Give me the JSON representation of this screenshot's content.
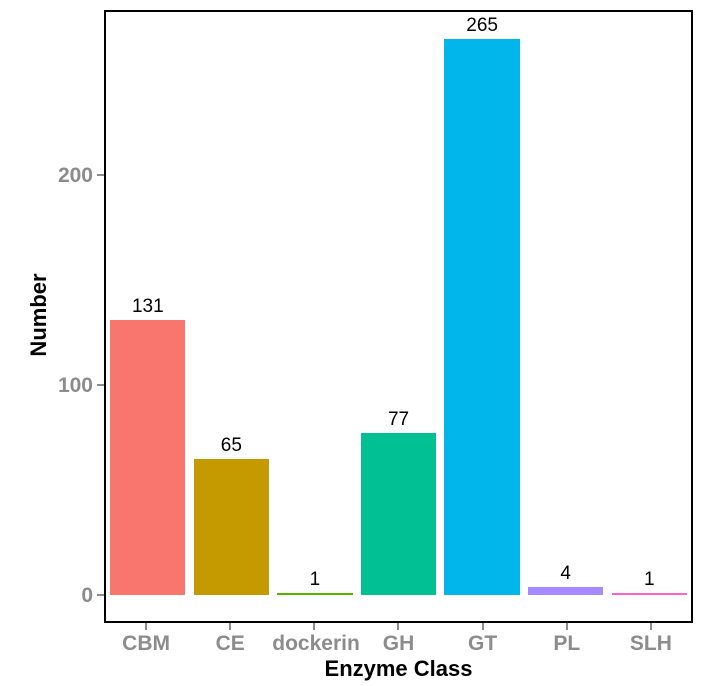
{
  "chart_data": {
    "type": "bar",
    "title": "",
    "xlabel": "Enzyme Class",
    "ylabel": "Number",
    "categories": [
      "CBM",
      "CE",
      "dockerin",
      "GH",
      "GT",
      "PL",
      "SLH"
    ],
    "values": [
      131,
      65,
      1,
      77,
      265,
      4,
      1
    ],
    "value_labels": [
      "131",
      "65",
      "1",
      "77",
      "265",
      "4",
      "1"
    ],
    "bar_colors": [
      "#F8766D",
      "#C49A00",
      "#53B400",
      "#00C094",
      "#00B6EB",
      "#A58AFF",
      "#FB61D7"
    ],
    "yticks": [
      0,
      100,
      200
    ],
    "ytick_labels": [
      "0",
      "100",
      "200"
    ],
    "ylim": [
      0,
      278
    ],
    "grid": false,
    "legend": "none",
    "colors": {
      "panel_border": "#000000",
      "axis_text": "#8C8C8C",
      "tick_mark": "#8C8C8C",
      "axis_title": "#000000",
      "value_label": "#000000",
      "background": "#FFFFFF"
    }
  }
}
